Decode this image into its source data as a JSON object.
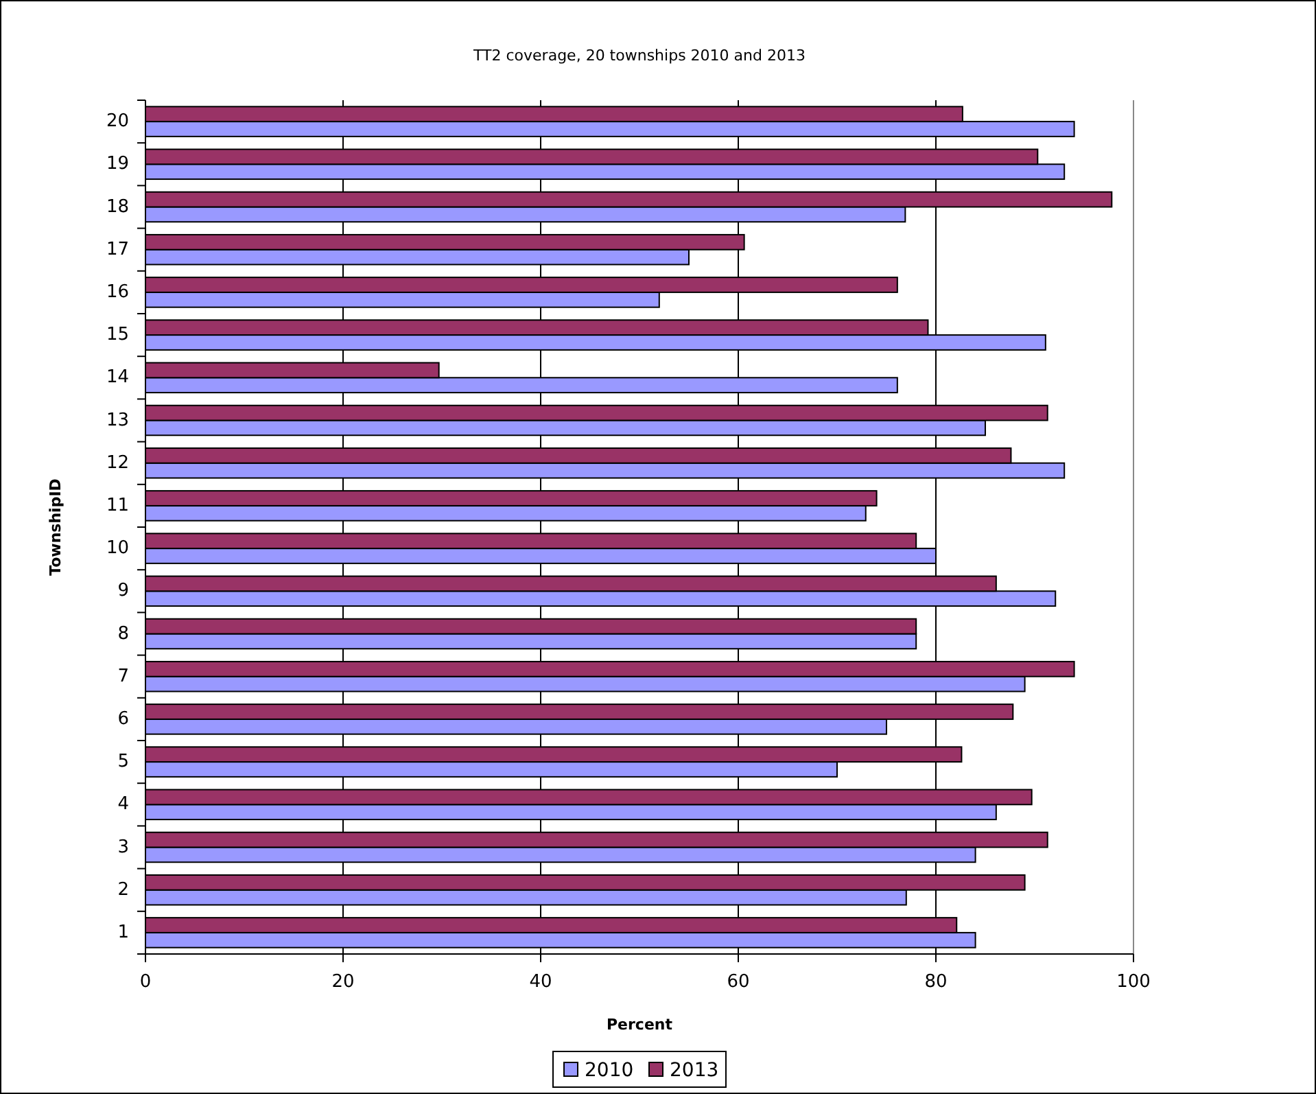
{
  "chart_data": {
    "type": "bar",
    "orientation": "horizontal",
    "title": "TT2 coverage, 20 townships 2010 and 2013",
    "xlabel": "Percent",
    "ylabel": "TownshipID",
    "categories": [
      "20",
      "19",
      "18",
      "17",
      "16",
      "15",
      "14",
      "13",
      "12",
      "11",
      "10",
      "9",
      "8",
      "7",
      "6",
      "5",
      "4",
      "3",
      "2",
      "1"
    ],
    "series": [
      {
        "name": "2010",
        "color": "#9999ff",
        "values": [
          94.0,
          93.0,
          76.9,
          55.0,
          52.0,
          91.1,
          76.1,
          85.0,
          93.0,
          72.9,
          80.0,
          92.1,
          78.0,
          89.0,
          75.0,
          70.0,
          86.1,
          84.0,
          77.0,
          84.0
        ]
      },
      {
        "name": "2013",
        "color": "#993366",
        "values": [
          82.7,
          90.3,
          97.8,
          60.6,
          76.1,
          79.2,
          29.7,
          91.3,
          87.6,
          74.0,
          78.0,
          86.1,
          78.0,
          94.0,
          87.8,
          82.6,
          89.7,
          91.3,
          89.0,
          82.1
        ]
      }
    ],
    "xlim": [
      0,
      100
    ],
    "xticks": [
      0,
      20,
      40,
      60,
      80,
      100
    ],
    "grid": "x",
    "legend": "bottom"
  }
}
